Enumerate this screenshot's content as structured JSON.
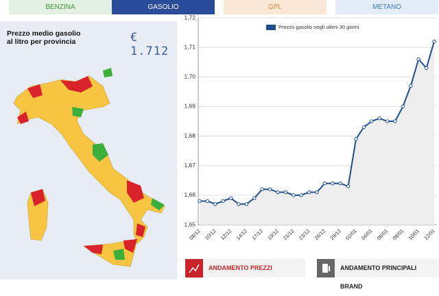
{
  "tabs": [
    "BENZINA",
    "GASOLIO",
    "GPL",
    "METANO"
  ],
  "map_panel": {
    "title": "Prezzo medio gasolio al litro per provincia",
    "price": "€ 1.712"
  },
  "buttons": [
    "ANDAMENTO PREZZI",
    "ANDAMENTO PRINCIPALI BRAND"
  ],
  "chart_data": {
    "type": "line",
    "categories": [
      "08/12",
      null,
      "10/12",
      null,
      "12/12",
      null,
      "14/12",
      null,
      "17/12",
      null,
      "19/12",
      null,
      "21/12",
      null,
      "23/12",
      null,
      "26/12",
      null,
      "29/12",
      null,
      "02/01",
      null,
      "04/01",
      null,
      "06/01",
      null,
      "08/01",
      null,
      "10/01",
      null,
      "12/01"
    ],
    "series": [
      {
        "name": "Prezzo gasolio negli ultimi 30 giorni",
        "color": "#1f4e8c",
        "values": [
          1.658,
          1.658,
          1.657,
          1.658,
          1.659,
          1.657,
          1.657,
          1.659,
          1.662,
          1.662,
          1.661,
          1.661,
          1.66,
          1.66,
          1.661,
          1.661,
          1.664,
          1.664,
          1.664,
          1.663,
          1.679,
          1.683,
          1.685,
          1.686,
          1.685,
          1.685,
          1.69,
          1.697,
          1.706,
          1.703,
          1.712
        ]
      }
    ],
    "ylim": [
      1.65,
      1.72
    ],
    "yticks": [
      {
        "value": 1.65,
        "label": "1,65"
      },
      {
        "value": 1.66,
        "label": "1,66"
      },
      {
        "value": 1.67,
        "label": "1,67"
      },
      {
        "value": 1.68,
        "label": "1,68"
      },
      {
        "value": 1.69,
        "label": "1,69"
      },
      {
        "value": 1.7,
        "label": "1,70"
      },
      {
        "value": 1.71,
        "label": "1,71"
      },
      {
        "value": 1.72,
        "label": "1,72"
      }
    ],
    "grid": true,
    "area_fill": "#ededed"
  }
}
